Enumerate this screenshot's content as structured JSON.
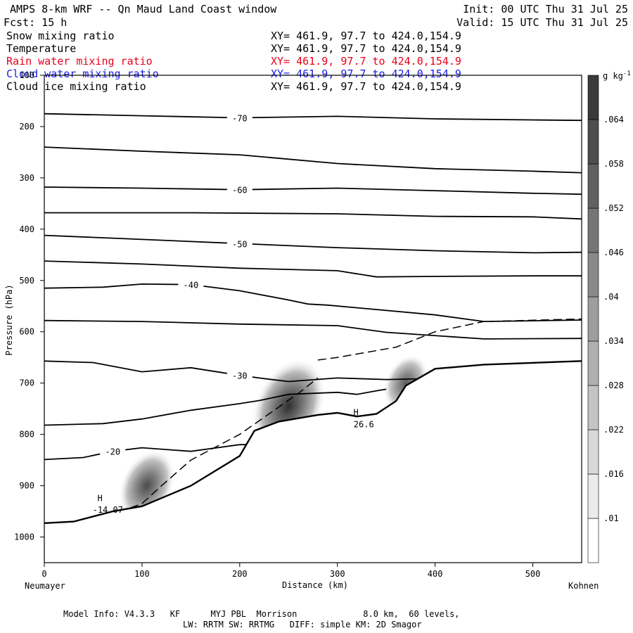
{
  "header": {
    "title": "AMPS 8-km WRF -- Qn Maud Land Coast window",
    "forecast": "Fcst:   15 h",
    "init": "Init: 00 UTC Thu 31 Jul 25",
    "valid": "Valid: 15 UTC Thu 31 Jul 25"
  },
  "fields": [
    {
      "name": "Snow mixing ratio",
      "xy": "XY= 461.9, 97.7 to 424.0,154.9",
      "color": "#000000"
    },
    {
      "name": "Temperature",
      "xy": "XY= 461.9, 97.7 to 424.0,154.9",
      "color": "#000000"
    },
    {
      "name": "Rain water mixing ratio",
      "xy": "XY= 461.9, 97.7 to 424.0,154.9",
      "color": "#e8001c"
    },
    {
      "name": "Cloud water mixing ratio",
      "xy": "XY= 461.9, 97.7 to 424.0,154.9",
      "color": "#1a1ae6"
    },
    {
      "name": "Cloud ice mixing ratio",
      "xy": "XY= 461.9, 97.7 to 424.0,154.9",
      "color": "#000000"
    }
  ],
  "footer": {
    "line1": "Model Info: V4.3.3   KF      MYJ PBL  Morrison             8.0 km,  60 levels,",
    "line2": "LW: RRTM SW: RRTMG   DIFF: simple KM: 2D Smagor"
  },
  "chart_data": {
    "type": "cross-section",
    "xlabel": "Distance (km)",
    "ylabel": "Pressure (hPa)",
    "xlim": [
      0,
      550
    ],
    "ylim": [
      1050,
      100
    ],
    "x_ticks": [
      0,
      100,
      200,
      300,
      400,
      500
    ],
    "y_ticks": [
      100,
      200,
      300,
      400,
      500,
      600,
      700,
      800,
      900,
      1000
    ],
    "left_endpoint": "Neumayer",
    "right_endpoint": "Kohnen",
    "colorbar": {
      "unit": "g kg",
      "unit_exponent": "-1",
      "ticks": [
        ".01",
        ".016",
        ".022",
        ".028",
        ".034",
        ".04",
        ".046",
        ".052",
        ".058",
        ".064"
      ],
      "values": [
        0.01,
        0.016,
        0.022,
        0.028,
        0.034,
        0.04,
        0.046,
        0.052,
        0.058,
        0.064
      ],
      "color_low": "#ffffff",
      "color_high": "#3a3a3a"
    },
    "temperature_isotherms": [
      {
        "label": "-70",
        "points": [
          [
            0,
            175
          ],
          [
            100,
            179
          ],
          [
            200,
            183
          ],
          [
            300,
            180
          ],
          [
            400,
            185
          ],
          [
            500,
            187
          ],
          [
            550,
            188
          ]
        ]
      },
      {
        "label": "",
        "points": [
          [
            0,
            240
          ],
          [
            100,
            248
          ],
          [
            200,
            255
          ],
          [
            300,
            272
          ],
          [
            400,
            282
          ],
          [
            500,
            287
          ],
          [
            550,
            290
          ]
        ]
      },
      {
        "label": "-60",
        "points": [
          [
            0,
            318
          ],
          [
            100,
            320
          ],
          [
            200,
            323
          ],
          [
            300,
            320
          ],
          [
            400,
            325
          ],
          [
            500,
            330
          ],
          [
            550,
            332
          ]
        ]
      },
      {
        "label": "",
        "points": [
          [
            0,
            368
          ],
          [
            150,
            368
          ],
          [
            300,
            370
          ],
          [
            400,
            375
          ],
          [
            500,
            376
          ],
          [
            550,
            380
          ]
        ]
      },
      {
        "label": "-50",
        "points": [
          [
            0,
            412
          ],
          [
            100,
            420
          ],
          [
            200,
            428
          ],
          [
            300,
            436
          ],
          [
            400,
            442
          ],
          [
            500,
            446
          ],
          [
            550,
            445
          ]
        ]
      },
      {
        "label": "",
        "points": [
          [
            0,
            462
          ],
          [
            100,
            468
          ],
          [
            200,
            476
          ],
          [
            300,
            481
          ],
          [
            340,
            493
          ],
          [
            400,
            492
          ],
          [
            500,
            491
          ],
          [
            550,
            491
          ]
        ]
      },
      {
        "label": "-40",
        "points": [
          [
            0,
            515
          ],
          [
            60,
            513
          ],
          [
            100,
            507
          ],
          [
            150,
            508
          ],
          [
            200,
            520
          ],
          [
            250,
            538
          ],
          [
            270,
            546
          ],
          [
            290,
            548
          ],
          [
            400,
            567
          ],
          [
            450,
            580
          ],
          [
            550,
            577
          ]
        ]
      },
      {
        "label": "",
        "points": [
          [
            0,
            578
          ],
          [
            100,
            580
          ],
          [
            200,
            585
          ],
          [
            300,
            588
          ],
          [
            350,
            601
          ],
          [
            450,
            614
          ],
          [
            550,
            613
          ]
        ]
      },
      {
        "label": "-30",
        "points": [
          [
            0,
            657
          ],
          [
            50,
            660
          ],
          [
            100,
            678
          ],
          [
            150,
            670
          ],
          [
            200,
            685
          ],
          [
            220,
            690
          ],
          [
            250,
            697
          ],
          [
            300,
            690
          ],
          [
            350,
            693
          ],
          [
            400,
            691
          ],
          [
            450,
            667
          ],
          [
            500,
            662
          ],
          [
            550,
            662
          ]
        ]
      },
      {
        "label": "",
        "points": [
          [
            0,
            782
          ],
          [
            60,
            779
          ],
          [
            100,
            770
          ],
          [
            150,
            753
          ],
          [
            200,
            740
          ],
          [
            220,
            734
          ],
          [
            250,
            722
          ],
          [
            300,
            718
          ],
          [
            320,
            722
          ],
          [
            340,
            715
          ],
          [
            350,
            712
          ]
        ]
      },
      {
        "label": "-20",
        "points": [
          [
            0,
            849
          ],
          [
            40,
            845
          ],
          [
            70,
            833
          ],
          [
            100,
            826
          ],
          [
            150,
            833
          ],
          [
            200,
            820
          ],
          [
            220,
            820
          ],
          [
            245,
            812
          ]
        ]
      }
    ],
    "cloud_ice_contours": [
      {
        "style": "dashed",
        "points": [
          [
            0,
            980
          ],
          [
            50,
            970
          ],
          [
            100,
            935
          ],
          [
            120,
            900
          ],
          [
            150,
            850
          ],
          [
            200,
            800
          ],
          [
            230,
            760
          ],
          [
            260,
            720
          ],
          [
            280,
            690
          ]
        ]
      },
      {
        "style": "dashed",
        "points": [
          [
            280,
            655
          ],
          [
            300,
            650
          ],
          [
            330,
            640
          ],
          [
            360,
            630
          ],
          [
            400,
            600
          ],
          [
            450,
            580
          ],
          [
            550,
            575
          ]
        ]
      }
    ],
    "surface_pressure": [
      [
        0,
        973
      ],
      [
        30,
        970
      ],
      [
        70,
        950
      ],
      [
        100,
        940
      ],
      [
        150,
        900
      ],
      [
        200,
        842
      ],
      [
        215,
        793
      ],
      [
        240,
        775
      ],
      [
        280,
        762
      ],
      [
        300,
        758
      ],
      [
        320,
        765
      ],
      [
        340,
        760
      ],
      [
        360,
        735
      ],
      [
        370,
        705
      ],
      [
        400,
        672
      ],
      [
        450,
        664
      ],
      [
        550,
        657
      ]
    ],
    "shaded_maxima": [
      {
        "x": 250,
        "p": 745,
        "value": 0.064
      },
      {
        "x": 105,
        "p": 900,
        "value": 0.046
      },
      {
        "x": 370,
        "p": 700,
        "value": 0.034
      }
    ],
    "annotations": [
      {
        "text": "H",
        "x": 57,
        "p": 930
      },
      {
        "text": "-14.07",
        "x": 65,
        "p": 953
      },
      {
        "text": "H",
        "x": 319,
        "p": 763
      },
      {
        "text": "26.6",
        "x": 327,
        "p": 786
      }
    ]
  }
}
